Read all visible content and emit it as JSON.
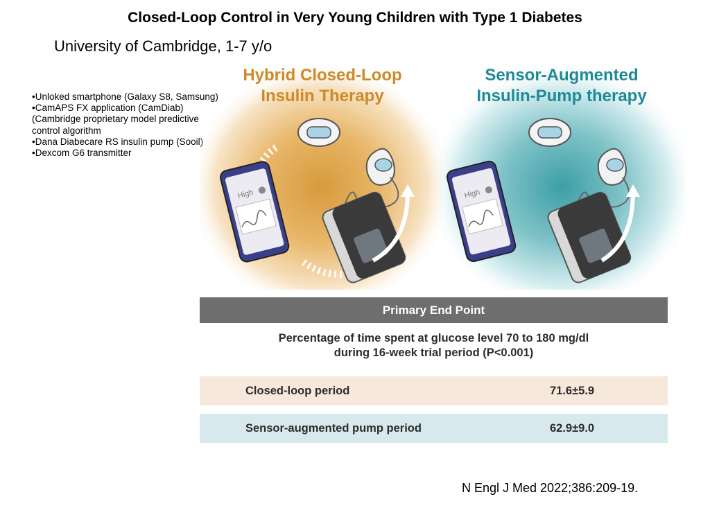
{
  "title": "Closed-Loop Control in Very Young Children with Type 1 Diabetes",
  "subtitle": "University of Cambridge,  1-7 y/o",
  "bullets": [
    "•Unloked smartphone (Galaxy S8, Samsung)",
    "•CamAPS FX application (CamDiab) (Cambridge proprietary model predictive control algorithm",
    "•Dana Diabecare RS insulin pump (Sooil)",
    "•Dexcom G6 transmitter"
  ],
  "illustration": {
    "left_heading_line1": "Hybrid Closed-Loop",
    "left_heading_line2": "Insulin Therapy",
    "right_heading_line1": "Sensor-Augmented",
    "right_heading_line2": "Insulin-Pump therapy",
    "phone_label": "High",
    "colors": {
      "orange": "#cc8a2a",
      "teal": "#1f8a96"
    }
  },
  "primary_end_point": {
    "header": "Primary End Point",
    "description_line1": "Percentage of time spent at glucose level 70 to 180 mg/dl",
    "description_line2": "during 16-week trial period (P<0.001)",
    "rows": [
      {
        "label": "Closed-loop period",
        "value": "71.6±5.9"
      },
      {
        "label": "Sensor-augmented pump period",
        "value": "62.9±9.0"
      }
    ]
  },
  "citation": "N Engl J Med 2022;386:209-19."
}
